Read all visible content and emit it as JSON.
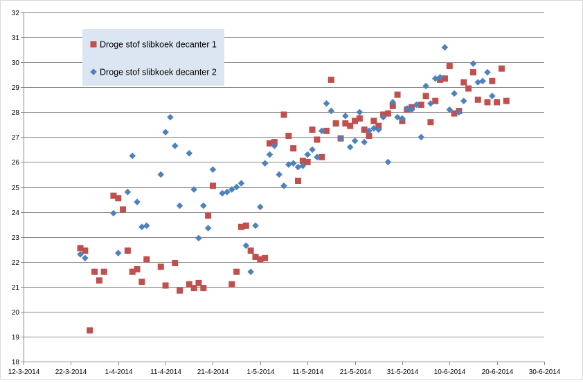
{
  "chart_data": {
    "type": "scatter",
    "title": "",
    "xlabel": "",
    "ylabel": "",
    "x_ticks": [
      "12-3-2014",
      "22-3-2014",
      "1-4-2014",
      "11-4-2014",
      "21-4-2014",
      "1-5-2014",
      "11-5-2014",
      "21-5-2014",
      "31-5-2014",
      "10-6-2014",
      "20-6-2014",
      "30-6-2014"
    ],
    "xlim": [
      "12-3-2014",
      "30-6-2014"
    ],
    "y_ticks": [
      "18",
      "19",
      "20",
      "21",
      "22",
      "23",
      "24",
      "25",
      "26",
      "27",
      "28",
      "29",
      "30",
      "31",
      "32"
    ],
    "ylim": [
      18,
      32
    ],
    "grid": "horizontal",
    "legend": "top-left",
    "series": [
      {
        "name": "Droge stof slibkoek decanter 1",
        "marker": "square",
        "color": "#C0504D",
        "points": [
          [
            "24-3-2014",
            22.55
          ],
          [
            "25-3-2014",
            22.45
          ],
          [
            "26-3-2014",
            19.25
          ],
          [
            "27-3-2014",
            21.6
          ],
          [
            "28-3-2014",
            21.25
          ],
          [
            "29-3-2014",
            21.6
          ],
          [
            "31-3-2014",
            24.65
          ],
          [
            "1-4-2014",
            24.55
          ],
          [
            "2-4-2014",
            24.1
          ],
          [
            "3-4-2014",
            22.45
          ],
          [
            "4-4-2014",
            21.6
          ],
          [
            "5-4-2014",
            21.7
          ],
          [
            "6-4-2014",
            21.2
          ],
          [
            "7-4-2014",
            22.1
          ],
          [
            "10-4-2014",
            21.8
          ],
          [
            "11-4-2014",
            21.05
          ],
          [
            "13-4-2014",
            21.95
          ],
          [
            "14-4-2014",
            20.85
          ],
          [
            "16-4-2014",
            21.1
          ],
          [
            "17-4-2014",
            20.95
          ],
          [
            "18-4-2014",
            21.15
          ],
          [
            "19-4-2014",
            20.95
          ],
          [
            "20-4-2014",
            23.85
          ],
          [
            "21-4-2014",
            25.05
          ],
          [
            "25-4-2014",
            21.1
          ],
          [
            "26-4-2014",
            21.6
          ],
          [
            "27-4-2014",
            23.4
          ],
          [
            "28-4-2014",
            23.45
          ],
          [
            "29-4-2014",
            22.45
          ],
          [
            "30-4-2014",
            22.2
          ],
          [
            "1-5-2014",
            22.1
          ],
          [
            "2-5-2014",
            22.15
          ],
          [
            "3-5-2014",
            26.75
          ],
          [
            "4-5-2014",
            26.8
          ],
          [
            "6-5-2014",
            27.9
          ],
          [
            "7-5-2014",
            27.05
          ],
          [
            "8-5-2014",
            26.55
          ],
          [
            "9-5-2014",
            25.25
          ],
          [
            "10-5-2014",
            26.05
          ],
          [
            "11-5-2014",
            26.0
          ],
          [
            "12-5-2014",
            27.3
          ],
          [
            "13-5-2014",
            26.9
          ],
          [
            "14-5-2014",
            26.2
          ],
          [
            "15-5-2014",
            27.25
          ],
          [
            "16-5-2014",
            29.3
          ],
          [
            "17-5-2014",
            27.55
          ],
          [
            "18-5-2014",
            26.95
          ],
          [
            "19-5-2014",
            27.55
          ],
          [
            "20-5-2014",
            27.45
          ],
          [
            "21-5-2014",
            27.65
          ],
          [
            "22-5-2014",
            27.75
          ],
          [
            "23-5-2014",
            27.3
          ],
          [
            "24-5-2014",
            27.05
          ],
          [
            "25-5-2014",
            27.65
          ],
          [
            "26-5-2014",
            27.45
          ],
          [
            "27-5-2014",
            27.9
          ],
          [
            "28-5-2014",
            27.95
          ],
          [
            "29-5-2014",
            28.25
          ],
          [
            "30-5-2014",
            28.7
          ],
          [
            "31-5-2014",
            27.65
          ],
          [
            "1-6-2014",
            28.1
          ],
          [
            "2-6-2014",
            28.2
          ],
          [
            "4-6-2014",
            28.3
          ],
          [
            "5-6-2014",
            28.65
          ],
          [
            "6-6-2014",
            27.6
          ],
          [
            "7-6-2014",
            28.45
          ],
          [
            "8-6-2014",
            29.3
          ],
          [
            "9-6-2014",
            29.35
          ],
          [
            "10-6-2014",
            29.85
          ],
          [
            "11-6-2014",
            27.95
          ],
          [
            "12-6-2014",
            28.05
          ],
          [
            "13-6-2014",
            29.2
          ],
          [
            "14-6-2014",
            28.95
          ],
          [
            "15-6-2014",
            29.6
          ],
          [
            "16-6-2014",
            28.5
          ],
          [
            "18-6-2014",
            28.4
          ],
          [
            "19-6-2014",
            29.25
          ],
          [
            "20-6-2014",
            28.4
          ],
          [
            "21-6-2014",
            29.75
          ],
          [
            "22-6-2014",
            28.45
          ]
        ]
      },
      {
        "name": "Droge stof slibkoek decanter 2",
        "marker": "diamond",
        "color": "#4F81BD",
        "points": [
          [
            "24-3-2014",
            22.3
          ],
          [
            "25-3-2014",
            22.15
          ],
          [
            "31-3-2014",
            23.95
          ],
          [
            "1-4-2014",
            22.35
          ],
          [
            "3-4-2014",
            24.8
          ],
          [
            "4-4-2014",
            26.25
          ],
          [
            "5-4-2014",
            24.4
          ],
          [
            "6-4-2014",
            23.4
          ],
          [
            "7-4-2014",
            23.45
          ],
          [
            "10-4-2014",
            25.5
          ],
          [
            "11-4-2014",
            27.2
          ],
          [
            "12-4-2014",
            27.8
          ],
          [
            "13-4-2014",
            26.65
          ],
          [
            "14-4-2014",
            24.25
          ],
          [
            "16-4-2014",
            26.35
          ],
          [
            "17-4-2014",
            24.9
          ],
          [
            "18-4-2014",
            22.95
          ],
          [
            "19-4-2014",
            24.25
          ],
          [
            "20-4-2014",
            23.35
          ],
          [
            "21-4-2014",
            25.7
          ],
          [
            "23-4-2014",
            24.75
          ],
          [
            "24-4-2014",
            24.8
          ],
          [
            "25-4-2014",
            24.9
          ],
          [
            "26-4-2014",
            25.0
          ],
          [
            "27-4-2014",
            25.15
          ],
          [
            "28-4-2014",
            22.65
          ],
          [
            "29-4-2014",
            21.6
          ],
          [
            "30-4-2014",
            23.45
          ],
          [
            "1-5-2014",
            24.2
          ],
          [
            "2-5-2014",
            25.95
          ],
          [
            "3-5-2014",
            26.3
          ],
          [
            "4-5-2014",
            26.65
          ],
          [
            "5-5-2014",
            25.5
          ],
          [
            "6-5-2014",
            25.05
          ],
          [
            "7-5-2014",
            25.9
          ],
          [
            "8-5-2014",
            25.95
          ],
          [
            "9-5-2014",
            25.8
          ],
          [
            "10-5-2014",
            25.85
          ],
          [
            "11-5-2014",
            26.3
          ],
          [
            "12-5-2014",
            26.5
          ],
          [
            "13-5-2014",
            26.2
          ],
          [
            "14-5-2014",
            27.25
          ],
          [
            "15-5-2014",
            28.35
          ],
          [
            "16-5-2014",
            28.05
          ],
          [
            "18-5-2014",
            26.95
          ],
          [
            "19-5-2014",
            27.85
          ],
          [
            "20-5-2014",
            26.6
          ],
          [
            "21-5-2014",
            26.85
          ],
          [
            "22-5-2014",
            28.0
          ],
          [
            "23-5-2014",
            26.8
          ],
          [
            "24-5-2014",
            27.25
          ],
          [
            "25-5-2014",
            27.35
          ],
          [
            "26-5-2014",
            27.3
          ],
          [
            "27-5-2014",
            27.8
          ],
          [
            "28-5-2014",
            26.0
          ],
          [
            "29-5-2014",
            28.4
          ],
          [
            "30-5-2014",
            27.8
          ],
          [
            "31-5-2014",
            27.75
          ],
          [
            "1-6-2014",
            28.15
          ],
          [
            "2-6-2014",
            28.1
          ],
          [
            "3-6-2014",
            28.3
          ],
          [
            "4-6-2014",
            27.0
          ],
          [
            "5-6-2014",
            29.05
          ],
          [
            "6-6-2014",
            28.35
          ],
          [
            "7-6-2014",
            29.35
          ],
          [
            "8-6-2014",
            29.4
          ],
          [
            "9-6-2014",
            30.6
          ],
          [
            "10-6-2014",
            28.1
          ],
          [
            "11-6-2014",
            28.75
          ],
          [
            "12-6-2014",
            28.0
          ],
          [
            "13-6-2014",
            28.45
          ],
          [
            "15-6-2014",
            29.95
          ],
          [
            "16-6-2014",
            29.2
          ],
          [
            "17-6-2014",
            29.25
          ],
          [
            "18-6-2014",
            29.6
          ],
          [
            "19-6-2014",
            28.65
          ]
        ]
      }
    ]
  }
}
